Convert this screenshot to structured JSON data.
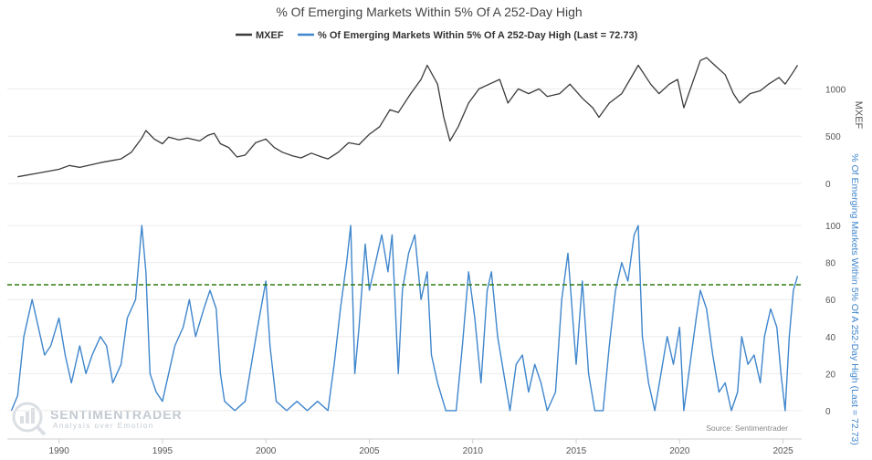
{
  "chart_data": {
    "type": "line",
    "title": "% Of Emerging Markets Within 5% Of A 252-Day High",
    "legend": {
      "placement": "top-center"
    },
    "x_range": [
      1987.5,
      2025.9
    ],
    "x_ticks": [
      "1990",
      "1995",
      "2000",
      "2005",
      "2010",
      "2015",
      "2020",
      "2025"
    ],
    "source": "Source: Sentimentrader",
    "watermark": {
      "brand": "SENTIMENTRADER",
      "tagline": "Analysis over Emotion"
    },
    "colors": {
      "mxef": "#3b3b3b",
      "pct": "#3f86cc",
      "threshold": "#2d7a10",
      "axis_text": "#555555",
      "pct_axis_text": "#3f86cc"
    },
    "panels": [
      {
        "id": "price",
        "ylabel": "MXEF",
        "ylim": [
          0,
          1380
        ],
        "y_ticks": [
          "0",
          "500",
          "1000"
        ],
        "series": [
          {
            "name": "MXEF",
            "color": "#3b3b3b",
            "points": [
              [
                1988.0,
                70
              ],
              [
                1989.0,
                110
              ],
              [
                1990.0,
                150
              ],
              [
                1990.5,
                190
              ],
              [
                1991.0,
                170
              ],
              [
                1992.0,
                220
              ],
              [
                1993.0,
                260
              ],
              [
                1993.5,
                330
              ],
              [
                1994.0,
                480
              ],
              [
                1994.2,
                560
              ],
              [
                1994.6,
                470
              ],
              [
                1995.0,
                420
              ],
              [
                1995.3,
                490
              ],
              [
                1995.8,
                460
              ],
              [
                1996.2,
                480
              ],
              [
                1996.8,
                450
              ],
              [
                1997.2,
                510
              ],
              [
                1997.5,
                530
              ],
              [
                1997.8,
                420
              ],
              [
                1998.2,
                380
              ],
              [
                1998.6,
                280
              ],
              [
                1999.0,
                300
              ],
              [
                1999.5,
                430
              ],
              [
                2000.0,
                470
              ],
              [
                2000.4,
                380
              ],
              [
                2000.8,
                330
              ],
              [
                2001.3,
                290
              ],
              [
                2001.7,
                270
              ],
              [
                2002.2,
                320
              ],
              [
                2002.7,
                280
              ],
              [
                2003.0,
                260
              ],
              [
                2003.5,
                330
              ],
              [
                2004.0,
                430
              ],
              [
                2004.5,
                410
              ],
              [
                2005.0,
                520
              ],
              [
                2005.5,
                600
              ],
              [
                2006.0,
                780
              ],
              [
                2006.4,
                750
              ],
              [
                2007.0,
                950
              ],
              [
                2007.5,
                1100
              ],
              [
                2007.8,
                1250
              ],
              [
                2008.3,
                1050
              ],
              [
                2008.6,
                700
              ],
              [
                2008.9,
                450
              ],
              [
                2009.3,
                600
              ],
              [
                2009.8,
                850
              ],
              [
                2010.3,
                1000
              ],
              [
                2010.8,
                1050
              ],
              [
                2011.3,
                1100
              ],
              [
                2011.7,
                850
              ],
              [
                2012.2,
                1000
              ],
              [
                2012.7,
                950
              ],
              [
                2013.2,
                1000
              ],
              [
                2013.6,
                920
              ],
              [
                2014.2,
                950
              ],
              [
                2014.7,
                1050
              ],
              [
                2015.3,
                900
              ],
              [
                2015.8,
                800
              ],
              [
                2016.1,
                700
              ],
              [
                2016.6,
                850
              ],
              [
                2017.2,
                950
              ],
              [
                2017.6,
                1100
              ],
              [
                2018.0,
                1250
              ],
              [
                2018.6,
                1050
              ],
              [
                2019.0,
                950
              ],
              [
                2019.5,
                1050
              ],
              [
                2019.9,
                1100
              ],
              [
                2020.2,
                800
              ],
              [
                2020.6,
                1050
              ],
              [
                2021.0,
                1300
              ],
              [
                2021.3,
                1330
              ],
              [
                2021.7,
                1250
              ],
              [
                2022.2,
                1150
              ],
              [
                2022.6,
                950
              ],
              [
                2022.9,
                850
              ],
              [
                2023.4,
                950
              ],
              [
                2023.9,
                980
              ],
              [
                2024.3,
                1050
              ],
              [
                2024.8,
                1120
              ],
              [
                2025.1,
                1050
              ],
              [
                2025.5,
                1180
              ],
              [
                2025.7,
                1250
              ]
            ]
          }
        ]
      },
      {
        "id": "breadth",
        "ylabel": "% Of Emerging Markets Within 5% Of A 252-Day High (Last = 72.73)",
        "ylim": [
          -5,
          105
        ],
        "y_ticks": [
          "0",
          "20",
          "40",
          "60",
          "80",
          "100"
        ],
        "threshold": 68,
        "series": [
          {
            "name": "% Of Emerging Markets Within 5% Of A 252-Day High (Last = 72.73)",
            "color": "#3f86cc",
            "points": [
              [
                1987.7,
                0
              ],
              [
                1988.0,
                8
              ],
              [
                1988.3,
                40
              ],
              [
                1988.7,
                60
              ],
              [
                1989.0,
                45
              ],
              [
                1989.3,
                30
              ],
              [
                1989.6,
                35
              ],
              [
                1990.0,
                50
              ],
              [
                1990.3,
                30
              ],
              [
                1990.6,
                15
              ],
              [
                1991.0,
                35
              ],
              [
                1991.3,
                20
              ],
              [
                1991.6,
                30
              ],
              [
                1992.0,
                40
              ],
              [
                1992.3,
                35
              ],
              [
                1992.6,
                15
              ],
              [
                1993.0,
                25
              ],
              [
                1993.3,
                50
              ],
              [
                1993.7,
                60
              ],
              [
                1994.0,
                100
              ],
              [
                1994.2,
                75
              ],
              [
                1994.4,
                20
              ],
              [
                1994.7,
                10
              ],
              [
                1995.0,
                5
              ],
              [
                1995.3,
                20
              ],
              [
                1995.6,
                35
              ],
              [
                1996.0,
                45
              ],
              [
                1996.3,
                60
              ],
              [
                1996.6,
                40
              ],
              [
                1997.0,
                55
              ],
              [
                1997.3,
                65
              ],
              [
                1997.6,
                55
              ],
              [
                1997.8,
                20
              ],
              [
                1998.0,
                5
              ],
              [
                1998.5,
                0
              ],
              [
                1999.0,
                5
              ],
              [
                1999.3,
                25
              ],
              [
                1999.6,
                45
              ],
              [
                2000.0,
                70
              ],
              [
                2000.2,
                35
              ],
              [
                2000.5,
                5
              ],
              [
                2001.0,
                0
              ],
              [
                2001.5,
                5
              ],
              [
                2002.0,
                0
              ],
              [
                2002.5,
                5
              ],
              [
                2003.0,
                0
              ],
              [
                2003.3,
                25
              ],
              [
                2003.6,
                55
              ],
              [
                2003.9,
                80
              ],
              [
                2004.1,
                100
              ],
              [
                2004.3,
                20
              ],
              [
                2004.5,
                45
              ],
              [
                2004.8,
                90
              ],
              [
                2005.0,
                65
              ],
              [
                2005.3,
                80
              ],
              [
                2005.6,
                95
              ],
              [
                2005.9,
                75
              ],
              [
                2006.1,
                95
              ],
              [
                2006.4,
                20
              ],
              [
                2006.6,
                65
              ],
              [
                2006.9,
                85
              ],
              [
                2007.2,
                95
              ],
              [
                2007.5,
                60
              ],
              [
                2007.8,
                75
              ],
              [
                2008.0,
                30
              ],
              [
                2008.3,
                15
              ],
              [
                2008.7,
                0
              ],
              [
                2009.2,
                0
              ],
              [
                2009.5,
                35
              ],
              [
                2009.8,
                75
              ],
              [
                2010.1,
                50
              ],
              [
                2010.4,
                15
              ],
              [
                2010.7,
                65
              ],
              [
                2010.9,
                75
              ],
              [
                2011.2,
                40
              ],
              [
                2011.5,
                20
              ],
              [
                2011.8,
                0
              ],
              [
                2012.1,
                25
              ],
              [
                2012.4,
                30
              ],
              [
                2012.7,
                10
              ],
              [
                2013.0,
                25
              ],
              [
                2013.3,
                15
              ],
              [
                2013.6,
                0
              ],
              [
                2014.0,
                10
              ],
              [
                2014.3,
                60
              ],
              [
                2014.6,
                85
              ],
              [
                2014.8,
                55
              ],
              [
                2015.0,
                25
              ],
              [
                2015.3,
                70
              ],
              [
                2015.6,
                20
              ],
              [
                2015.9,
                0
              ],
              [
                2016.3,
                0
              ],
              [
                2016.6,
                35
              ],
              [
                2016.9,
                65
              ],
              [
                2017.2,
                80
              ],
              [
                2017.5,
                70
              ],
              [
                2017.8,
                95
              ],
              [
                2018.0,
                100
              ],
              [
                2018.2,
                40
              ],
              [
                2018.5,
                15
              ],
              [
                2018.8,
                0
              ],
              [
                2019.1,
                20
              ],
              [
                2019.4,
                40
              ],
              [
                2019.7,
                25
              ],
              [
                2020.0,
                45
              ],
              [
                2020.2,
                0
              ],
              [
                2020.5,
                25
              ],
              [
                2020.8,
                50
              ],
              [
                2021.0,
                65
              ],
              [
                2021.3,
                55
              ],
              [
                2021.6,
                30
              ],
              [
                2021.9,
                10
              ],
              [
                2022.2,
                15
              ],
              [
                2022.5,
                0
              ],
              [
                2022.8,
                10
              ],
              [
                2023.0,
                40
              ],
              [
                2023.3,
                25
              ],
              [
                2023.6,
                30
              ],
              [
                2023.9,
                15
              ],
              [
                2024.1,
                40
              ],
              [
                2024.4,
                55
              ],
              [
                2024.7,
                45
              ],
              [
                2024.9,
                20
              ],
              [
                2025.1,
                0
              ],
              [
                2025.3,
                40
              ],
              [
                2025.5,
                65
              ],
              [
                2025.7,
                72.73
              ]
            ]
          }
        ]
      }
    ]
  }
}
